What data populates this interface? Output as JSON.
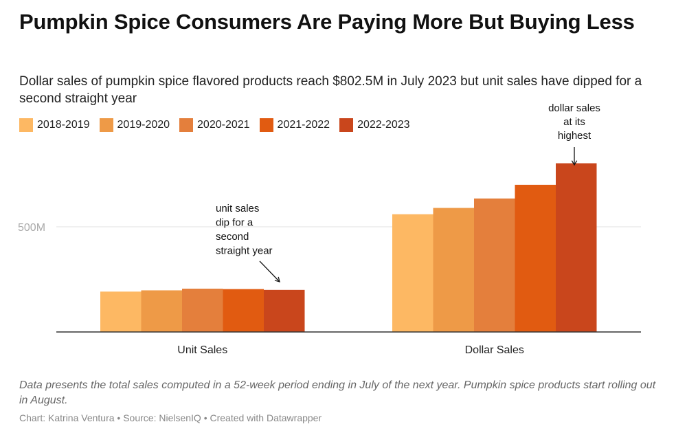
{
  "title": "Pumpkin Spice Consumers Are Paying More But Buying Less",
  "subtitle": "Dollar sales of pumpkin spice flavored products reach $802.5M in July 2023 but unit sales have dipped for a second straight year",
  "note": "Data presents the total sales computed in a 52-week period ending in July of the next year. Pumpkin spice products start rolling out in August.",
  "credit": "Chart: Katrina Ventura • Source: NielsenIQ • Created with Datawrapper",
  "colors": [
    "#fdb863",
    "#ee9a47",
    "#e47f3c",
    "#e15b11",
    "#c9461c"
  ],
  "chart_data": {
    "type": "bar",
    "categories": [
      "Unit Sales",
      "Dollar Sales"
    ],
    "series": [
      {
        "name": "2018-2019",
        "values": [
          192,
          560
        ]
      },
      {
        "name": "2019-2020",
        "values": [
          198,
          590
        ]
      },
      {
        "name": "2020-2021",
        "values": [
          206,
          635
        ]
      },
      {
        "name": "2021-2022",
        "values": [
          204,
          700
        ]
      },
      {
        "name": "2022-2023",
        "values": [
          200,
          802.5
        ]
      }
    ],
    "yticks": [
      {
        "value": 500,
        "label": "500M"
      }
    ],
    "ylim": [
      0,
      850
    ],
    "grid": true,
    "legend_position": "top-left",
    "annotations": [
      {
        "text": [
          "unit sales",
          "dip for a",
          "second",
          "straight year"
        ],
        "category": 0
      },
      {
        "text": [
          "dollar sales",
          "at its",
          "highest"
        ],
        "category": 1
      }
    ]
  }
}
